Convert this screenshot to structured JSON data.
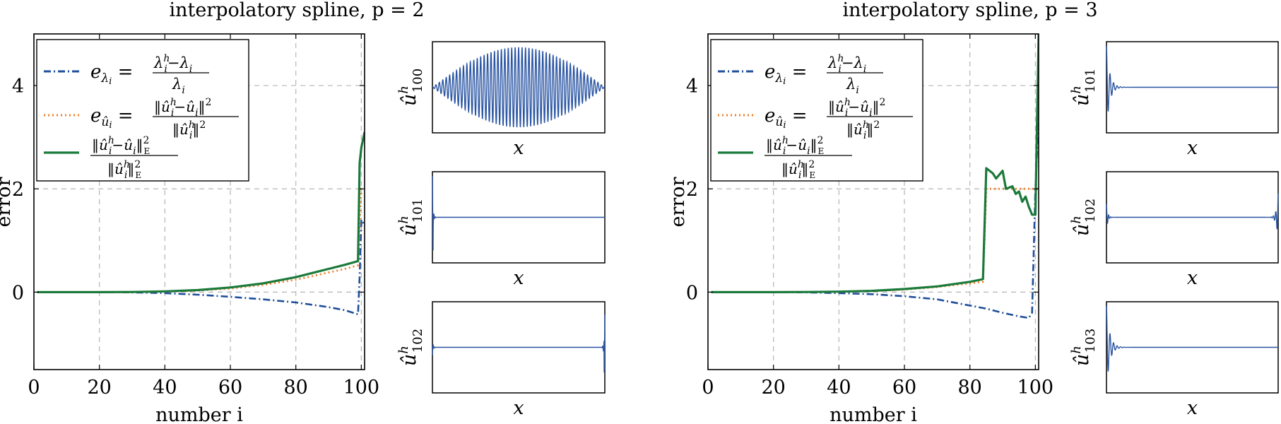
{
  "colors": {
    "eigen_error": "#1f4e9b",
    "l2_error": "#f07f2a",
    "energy_error": "#1a7a3a",
    "mode": "#2a55a3",
    "grid": "#b5b5b5"
  },
  "chart_data": [
    {
      "type": "line",
      "title": "interpolatory spline, p = 2",
      "xlabel": "number i",
      "ylabel": "error",
      "xlim": [
        0,
        101
      ],
      "ylim": [
        -1.5,
        5
      ],
      "xticks": [
        "0",
        "20",
        "40",
        "60",
        "80",
        "100"
      ],
      "yticks": [
        "0",
        "2",
        "4"
      ],
      "grid": true,
      "legend_position": "top-left",
      "series": [
        {
          "name": "e_{λ_i} = (λ_i^h − λ_i) / λ_i",
          "style": "dash-dot",
          "color_key": "eigen_error",
          "x": [
            1,
            10,
            20,
            30,
            40,
            50,
            60,
            70,
            80,
            90,
            95,
            99,
            99.5,
            100,
            101
          ],
          "y": [
            0,
            0,
            0,
            -0.005,
            -0.02,
            -0.05,
            -0.09,
            -0.14,
            -0.2,
            -0.29,
            -0.35,
            -0.43,
            0.3,
            1.4,
            1.3
          ]
        },
        {
          "name": "e_{û_i} = ‖û_i^h − û_i‖² / ‖û_i^h‖²",
          "style": "dotted",
          "color_key": "l2_error",
          "x": [
            1,
            10,
            20,
            30,
            40,
            50,
            60,
            70,
            80,
            90,
            95,
            99,
            99.5,
            100,
            101
          ],
          "y": [
            0,
            0,
            0,
            0.003,
            0.01,
            0.03,
            0.07,
            0.14,
            0.24,
            0.38,
            0.45,
            0.52,
            1.3,
            2.0,
            2.0
          ]
        },
        {
          "name": "‖û_i^h − û_i‖²_E / ‖û_i^h‖²_E",
          "style": "solid",
          "color_key": "energy_error",
          "x": [
            1,
            10,
            20,
            30,
            40,
            50,
            60,
            70,
            80,
            90,
            95,
            99,
            99.5,
            100,
            101
          ],
          "y": [
            0,
            0,
            0,
            0.003,
            0.015,
            0.04,
            0.09,
            0.17,
            0.29,
            0.45,
            0.53,
            0.6,
            2.5,
            2.8,
            3.1
          ]
        }
      ]
    },
    {
      "type": "line",
      "title": "interpolatory spline, p = 3",
      "xlabel": "number i",
      "ylabel": "error",
      "xlim": [
        0,
        101
      ],
      "ylim": [
        -1.5,
        5
      ],
      "xticks": [
        "0",
        "20",
        "40",
        "60",
        "80",
        "100"
      ],
      "yticks": [
        "0",
        "2",
        "4"
      ],
      "grid": true,
      "legend_position": "top-left",
      "series": [
        {
          "name": "e_{λ_i} = (λ_i^h − λ_i) / λ_i",
          "style": "dash-dot",
          "color_key": "eigen_error",
          "x": [
            1,
            10,
            20,
            30,
            40,
            50,
            60,
            70,
            80,
            85,
            90,
            95,
            98,
            99,
            100,
            101
          ],
          "y": [
            0,
            0,
            0,
            -0.005,
            -0.02,
            -0.04,
            -0.08,
            -0.14,
            -0.26,
            -0.32,
            -0.4,
            -0.47,
            -0.5,
            -0.4,
            2.0,
            3.4
          ]
        },
        {
          "name": "e_{û_i} = ‖û_i^h − û_i‖² / ‖û_i^h‖²",
          "style": "dotted",
          "color_key": "l2_error",
          "x": [
            1,
            10,
            20,
            30,
            40,
            50,
            60,
            70,
            80,
            84,
            85,
            88,
            91,
            94,
            97,
            100,
            101
          ],
          "y": [
            0,
            0,
            0,
            0.002,
            0.008,
            0.02,
            0.05,
            0.1,
            0.17,
            0.2,
            2.0,
            2.0,
            2.0,
            2.0,
            2.0,
            2.0,
            2.0
          ]
        },
        {
          "name": "‖û_i^h − û_i‖²_E / ‖û_i^h‖²_E",
          "style": "solid",
          "color_key": "energy_error",
          "x": [
            1,
            10,
            20,
            30,
            40,
            50,
            60,
            70,
            80,
            84,
            85,
            87,
            88,
            90,
            91,
            93,
            94,
            95,
            96,
            97,
            98,
            99,
            100,
            100.5,
            101
          ],
          "y": [
            0,
            0,
            0,
            0.003,
            0.01,
            0.025,
            0.06,
            0.11,
            0.2,
            0.25,
            2.4,
            2.3,
            2.2,
            2.35,
            2.0,
            2.05,
            1.9,
            1.95,
            1.75,
            1.85,
            1.65,
            1.5,
            1.5,
            3.3,
            5.0
          ]
        }
      ]
    }
  ],
  "mode_panels": {
    "left": [
      {
        "label_base": "û",
        "label_sup": "h",
        "label_sub": "100",
        "xlabel": "x",
        "shape": "full-oscillation"
      },
      {
        "label_base": "û",
        "label_sup": "h",
        "label_sub": "101",
        "xlabel": "x",
        "shape": "left-boundary"
      },
      {
        "label_base": "û",
        "label_sup": "h",
        "label_sub": "102",
        "xlabel": "x",
        "shape": "both-boundaries-right-large"
      }
    ],
    "right": [
      {
        "label_base": "û",
        "label_sup": "h",
        "label_sub": "101",
        "xlabel": "x",
        "shape": "left-boundary-ringing"
      },
      {
        "label_base": "û",
        "label_sup": "h",
        "label_sub": "102",
        "xlabel": "x",
        "shape": "both-boundaries"
      },
      {
        "label_base": "û",
        "label_sup": "h",
        "label_sub": "103",
        "xlabel": "x",
        "shape": "left-boundary-ringing"
      }
    ]
  }
}
